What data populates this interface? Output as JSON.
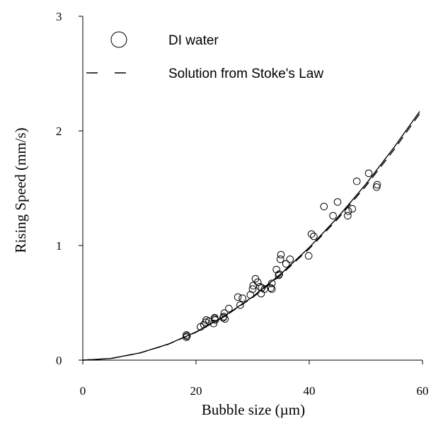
{
  "chart_data": {
    "type": "scatter",
    "xlabel": "Bubble size (µm)",
    "ylabel": "Rising Speed (mm/s)",
    "xlim": [
      0,
      60
    ],
    "ylim": [
      0,
      3
    ],
    "x_ticks": [
      "0",
      "20",
      "40",
      "60"
    ],
    "y_ticks": [
      "0",
      "1",
      "2",
      "3"
    ],
    "grid": false,
    "legend_position": "top-left",
    "series": [
      {
        "name": "DI water",
        "kind": "scatter",
        "marker": "open-circle",
        "points": [
          [
            18.3,
            0.2
          ],
          [
            18.3,
            0.22
          ],
          [
            18.4,
            0.21
          ],
          [
            20.8,
            0.29
          ],
          [
            21.4,
            0.31
          ],
          [
            21.7,
            0.33
          ],
          [
            21.8,
            0.35
          ],
          [
            22.3,
            0.34
          ],
          [
            23.1,
            0.32
          ],
          [
            23.3,
            0.36
          ],
          [
            23.4,
            0.35
          ],
          [
            23.3,
            0.37
          ],
          [
            24.9,
            0.38
          ],
          [
            25.0,
            0.41
          ],
          [
            25.1,
            0.36
          ],
          [
            24.8,
            0.37
          ],
          [
            25.8,
            0.45
          ],
          [
            27.4,
            0.55
          ],
          [
            27.8,
            0.48
          ],
          [
            28.2,
            0.54
          ],
          [
            29.6,
            0.57
          ],
          [
            30.0,
            0.62
          ],
          [
            30.1,
            0.65
          ],
          [
            30.5,
            0.71
          ],
          [
            30.9,
            0.68
          ],
          [
            31.3,
            0.64
          ],
          [
            31.5,
            0.58
          ],
          [
            31.6,
            0.63
          ],
          [
            32.1,
            0.62
          ],
          [
            33.2,
            0.63
          ],
          [
            33.4,
            0.62
          ],
          [
            33.4,
            0.67
          ],
          [
            34.2,
            0.79
          ],
          [
            34.6,
            0.74
          ],
          [
            34.7,
            0.75
          ],
          [
            34.9,
            0.88
          ],
          [
            35.0,
            0.92
          ],
          [
            35.9,
            0.84
          ],
          [
            36.6,
            0.88
          ],
          [
            39.9,
            0.91
          ],
          [
            40.4,
            1.1
          ],
          [
            40.8,
            1.08
          ],
          [
            42.6,
            1.34
          ],
          [
            44.2,
            1.26
          ],
          [
            45.0,
            1.38
          ],
          [
            46.8,
            1.26
          ],
          [
            46.9,
            1.3
          ],
          [
            47.6,
            1.32
          ],
          [
            48.4,
            1.56
          ],
          [
            50.5,
            1.63
          ],
          [
            51.9,
            1.51
          ],
          [
            52.0,
            1.53
          ]
        ]
      },
      {
        "name": "Solution from Stoke's Law",
        "kind": "line",
        "style": "dashed",
        "x": [
          0,
          5,
          10,
          15,
          20,
          25,
          30,
          35,
          40,
          45,
          50,
          55,
          59.5
        ],
        "values": [
          0,
          0.015,
          0.061,
          0.137,
          0.243,
          0.38,
          0.547,
          0.744,
          0.972,
          1.23,
          1.519,
          1.838,
          2.15
        ]
      },
      {
        "kind": "line",
        "style": "solid",
        "x": [
          0,
          5,
          10,
          15,
          20,
          25,
          30,
          35,
          40,
          45,
          50,
          55,
          59.5
        ],
        "values": [
          0,
          0.015,
          0.062,
          0.138,
          0.246,
          0.384,
          0.553,
          0.753,
          0.983,
          1.244,
          1.536,
          1.858,
          2.17
        ]
      }
    ]
  }
}
